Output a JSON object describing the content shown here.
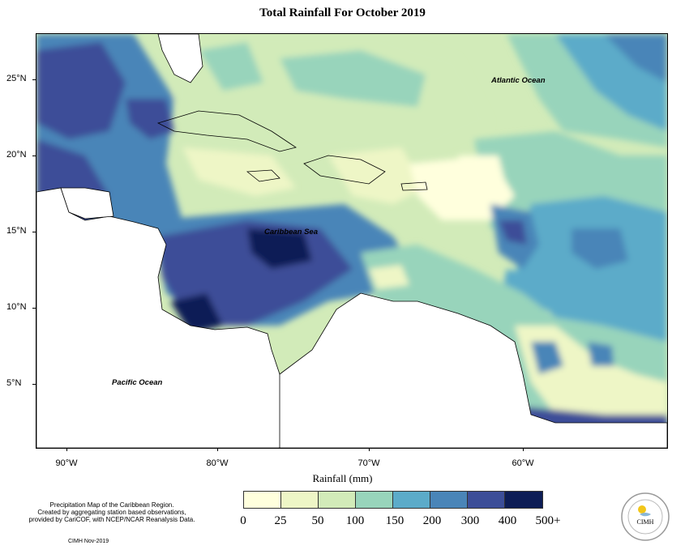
{
  "title": "Total Rainfall For October 2019",
  "map": {
    "latitude_labels": [
      "25°N",
      "20°N",
      "15°N",
      "10°N",
      "5°N"
    ],
    "longitude_labels": [
      "90°W",
      "80°W",
      "70°W",
      "60°W"
    ],
    "ocean_labels": {
      "atlantic": "Atlantic Ocean",
      "caribbean": "Caribbean Sea",
      "pacific": "Pacific Ocean"
    }
  },
  "legend": {
    "axis_title": "Rainfall (mm)",
    "ticks": [
      "0",
      "25",
      "50",
      "100",
      "150",
      "200",
      "300",
      "400",
      "500+"
    ],
    "colors": [
      "#ffffdd",
      "#eef6c6",
      "#d2ebb9",
      "#98d4bb",
      "#5cabc9",
      "#4a85b8",
      "#3c4e98",
      "#2c2d85",
      "#0d1d56"
    ]
  },
  "note": {
    "lines": [
      "Precipitation Map of the Caribbean Region.",
      "Created by aggregating station based observations,",
      "provided by CariCOF, with NCEP/NCAR Reanalysis Data."
    ],
    "credit": "CIMH Nov-2019"
  },
  "logo": {
    "text": "CIMH"
  }
}
